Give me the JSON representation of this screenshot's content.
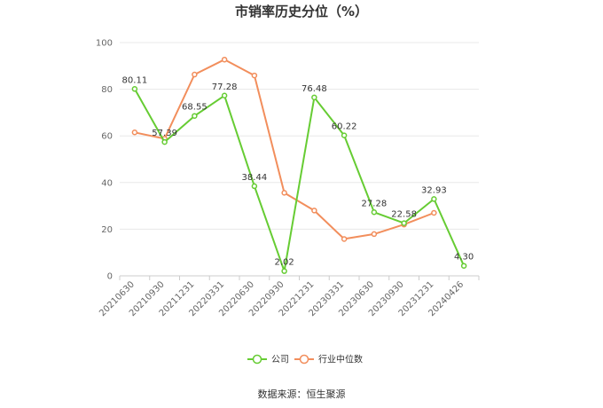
{
  "title": "市销率历史分位（%）",
  "source": "数据来源：恒生聚源",
  "colors": {
    "company": "#66cc33",
    "industry": "#f28e5c",
    "grid": "#e8e8e8",
    "axis": "#cccccc"
  },
  "chart_data": {
    "type": "line",
    "title": "市销率历史分位（%）",
    "categories": [
      "20210630",
      "20210930",
      "20211231",
      "20220331",
      "20220630",
      "20220930",
      "20221231",
      "20230331",
      "20230630",
      "20230930",
      "20231231",
      "20240426"
    ],
    "ylim": [
      0,
      100
    ],
    "yticks": [
      0,
      20,
      40,
      60,
      80,
      100
    ],
    "grid": true,
    "legend_position": "bottom",
    "series": [
      {
        "name": "公司",
        "color": "#66cc33",
        "values": [
          80.11,
          57.39,
          68.55,
          77.28,
          38.44,
          2.02,
          76.48,
          60.22,
          27.28,
          22.58,
          32.93,
          4.3
        ],
        "labels": [
          "80.11",
          "57.39",
          "68.55",
          "77.28",
          "38.44",
          "2.02",
          "76.48",
          "60.22",
          "27.28",
          "22.58",
          "32.93",
          "4.30"
        ]
      },
      {
        "name": "行业中位数",
        "color": "#f28e5c",
        "values": [
          61.5,
          58.8,
          86.3,
          92.7,
          85.9,
          35.6,
          28.0,
          15.8,
          17.9,
          22.0,
          27.0,
          null
        ]
      }
    ]
  }
}
